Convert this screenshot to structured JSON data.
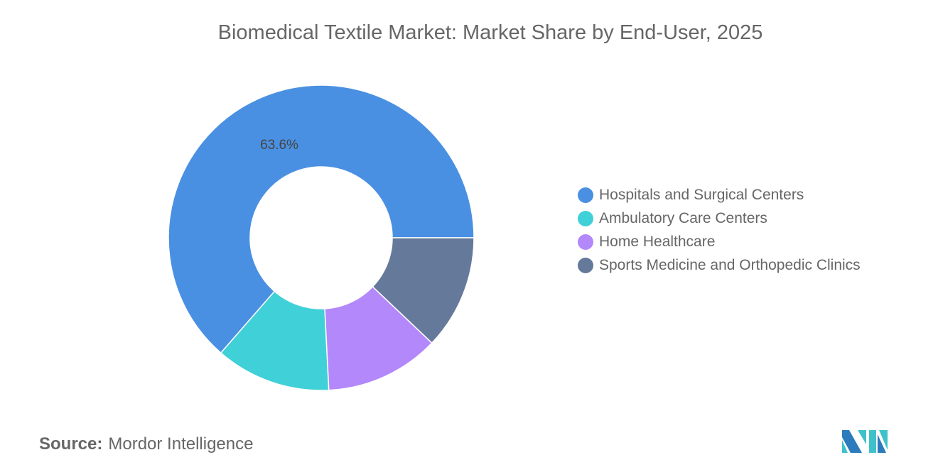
{
  "chart_data": {
    "type": "pie",
    "variant": "donut",
    "title": "Biomedical Textile Market: Market Share by End-User, 2025",
    "categories": [
      "Hospitals and Surgical Centers",
      "Ambulatory Care Centers",
      "Home Healthcare",
      "Sports Medicine and Orthopedic Clinics"
    ],
    "values": [
      63.6,
      12.2,
      12.1,
      12.1
    ],
    "unit": "%",
    "data_labels": [
      "63.6%",
      "",
      "",
      ""
    ],
    "colors": [
      "#4a90e2",
      "#40d0d8",
      "#b388fa",
      "#65799b"
    ],
    "legend_position": "right"
  },
  "source": {
    "label": "Source:",
    "value": "Mordor Intelligence"
  },
  "logo_text": "Mordor Intelligence"
}
